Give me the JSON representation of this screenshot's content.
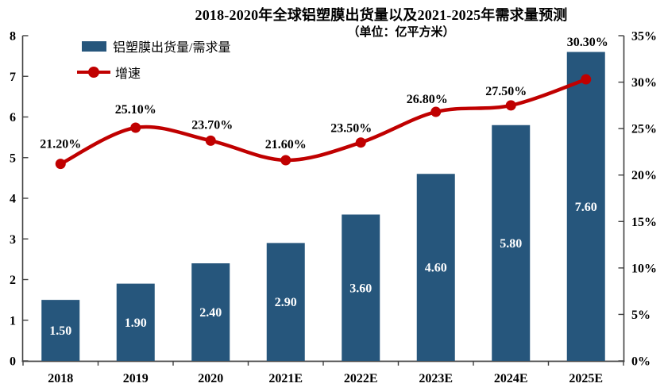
{
  "title": "2018-2020年全球铝塑膜出货量以及2021-2025年需求量预测",
  "subtitle": "（单位：亿平方米）",
  "chart_data": {
    "type": "combo",
    "title": "2018-2020年全球铝塑膜出货量以及2021-2025年需求量预测",
    "subtitle": "（单位：亿平方米）",
    "categories": [
      "2018",
      "2019",
      "2020",
      "2021E",
      "2022E",
      "2023E",
      "2024E",
      "2025E"
    ],
    "series": [
      {
        "name": "铝塑膜出货量/需求量",
        "type": "bar",
        "axis": "left",
        "color": "#26567C",
        "values": [
          1.5,
          1.9,
          2.4,
          2.9,
          3.6,
          4.6,
          5.8,
          7.6
        ],
        "labels": [
          "1.50",
          "1.90",
          "2.40",
          "2.90",
          "3.60",
          "4.60",
          "5.80",
          "7.60"
        ],
        "label_color": "#ffffff"
      },
      {
        "name": "增速",
        "type": "line",
        "axis": "right",
        "color": "#C00000",
        "values": [
          21.2,
          25.1,
          23.7,
          21.6,
          23.5,
          26.8,
          27.5,
          30.3
        ],
        "labels": [
          "21.20%",
          "25.10%",
          "23.70%",
          "21.60%",
          "23.50%",
          "26.80%",
          "27.50%",
          "30.30%"
        ],
        "label_offsets": [
          {
            "dx": 0,
            "dy": -20
          },
          {
            "dx": 0,
            "dy": -18
          },
          {
            "dx": 2,
            "dy": -15
          },
          {
            "dx": 0,
            "dy": -15
          },
          {
            "dx": -12,
            "dy": -13
          },
          {
            "dx": -11,
            "dy": -11
          },
          {
            "dx": -6,
            "dy": -13
          },
          {
            "dx": 2,
            "dy": -42
          }
        ]
      }
    ],
    "left_axis": {
      "min": 0,
      "max": 8,
      "step": 1,
      "ticks": [
        "0",
        "1",
        "2",
        "3",
        "4",
        "5",
        "6",
        "7",
        "8"
      ]
    },
    "right_axis": {
      "min": 0,
      "max": 35,
      "step": 5,
      "ticks": [
        "0%",
        "5%",
        "10%",
        "15%",
        "20%",
        "25%",
        "30%",
        "35%"
      ]
    },
    "grid": false,
    "legend_position": "top-left",
    "axis_color": "#404040"
  }
}
